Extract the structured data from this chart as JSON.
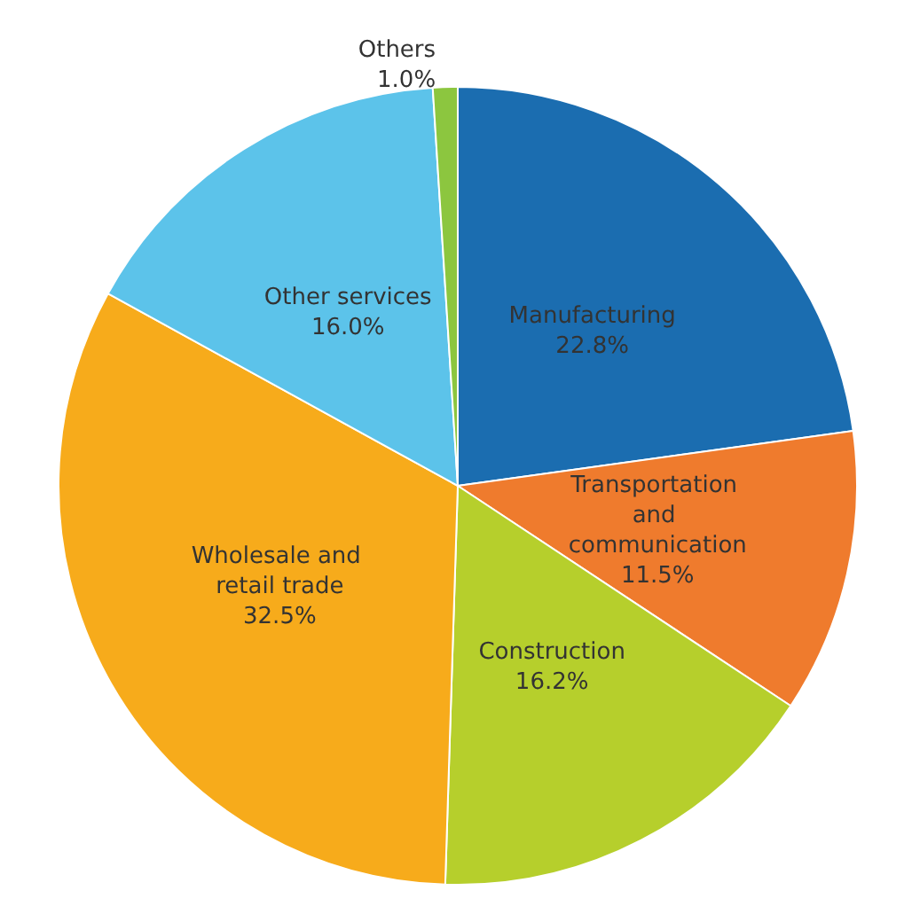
{
  "chart_data": {
    "type": "pie",
    "categories": [
      "Manufacturing",
      "Transportation and communication",
      "Construction",
      "Wholesale and retail trade",
      "Other services",
      "Others"
    ],
    "values": [
      22.8,
      11.5,
      16.2,
      32.5,
      16.0,
      1.0
    ],
    "value_labels": [
      "22.8%",
      "11.5%",
      "16.2%",
      "32.5%",
      "16.0%",
      "1.0%"
    ],
    "colors": [
      "#1b6db0",
      "#ef7b2d",
      "#b6cf2c",
      "#f7ab1b",
      "#5cc3ea",
      "#8cc63f"
    ],
    "legend": false
  }
}
